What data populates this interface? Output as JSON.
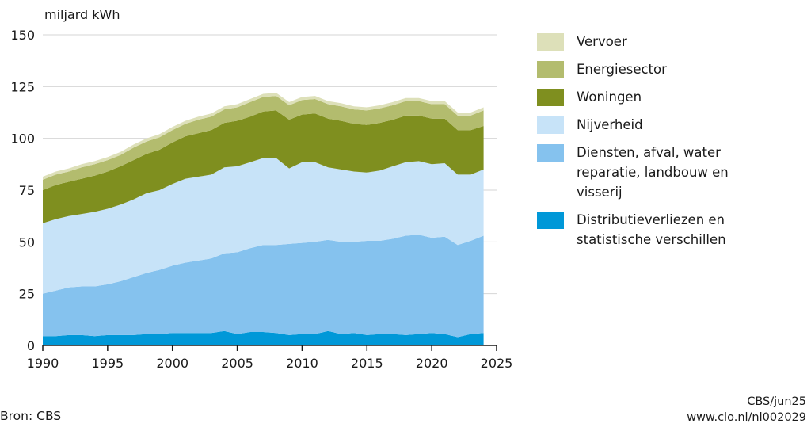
{
  "chart_data": {
    "type": "area",
    "stacked": true,
    "ylabel": "miljard kWh",
    "xlim": [
      1990,
      2025
    ],
    "ylim": [
      0,
      150
    ],
    "x_ticks": [
      "1990",
      "1995",
      "2000",
      "2005",
      "2010",
      "2015",
      "2020",
      "2025"
    ],
    "y_ticks": [
      "0",
      "25",
      "50",
      "75",
      "100",
      "125",
      "150"
    ],
    "grid": "horizontal",
    "legend_position": "right",
    "x": [
      1990,
      1991,
      1992,
      1993,
      1994,
      1995,
      1996,
      1997,
      1998,
      1999,
      2000,
      2001,
      2002,
      2003,
      2004,
      2005,
      2006,
      2007,
      2008,
      2009,
      2010,
      2011,
      2012,
      2013,
      2014,
      2015,
      2016,
      2017,
      2018,
      2019,
      2020,
      2021,
      2022,
      2023,
      2024
    ],
    "series": [
      {
        "name": "Distributieverliezen en\nstatistische verschillen",
        "color": "#0098d8",
        "values": [
          4.5,
          4.5,
          5,
          5,
          4.5,
          5,
          5,
          5,
          5.5,
          5.5,
          6,
          6,
          6,
          6,
          7,
          5.5,
          6.5,
          6.5,
          6,
          5,
          5.5,
          5.5,
          7,
          5.5,
          6,
          5,
          5.5,
          5.5,
          5,
          5.5,
          6,
          5.5,
          4,
          5.5,
          6
        ]
      },
      {
        "name": "Diensten, afval, water\nreparatie, landbouw en\nvisserij",
        "color": "#85c2ee",
        "values": [
          20.5,
          22,
          23,
          23.5,
          24,
          24.5,
          26,
          28,
          29.5,
          31,
          32.5,
          34,
          35,
          36,
          37.5,
          39.5,
          40.5,
          42,
          42.5,
          44,
          44,
          44.5,
          44,
          44.5,
          44,
          45.5,
          45,
          46,
          48,
          48,
          46,
          47,
          44.5,
          45,
          47
        ]
      },
      {
        "name": "Nijverheid",
        "color": "#c7e3f8",
        "values": [
          34,
          34.5,
          34.5,
          35,
          36,
          36.5,
          37,
          37.5,
          38.5,
          38.5,
          39.5,
          40.5,
          40.5,
          40.5,
          41.5,
          41.5,
          41.5,
          42,
          42,
          36.5,
          39,
          38.5,
          35,
          35,
          34,
          33,
          34,
          35,
          35.5,
          35.5,
          35.5,
          35.5,
          34,
          32,
          32
        ]
      },
      {
        "name": "Woningen",
        "color": "#7f8f1f",
        "values": [
          16,
          16.5,
          16.5,
          17,
          17.5,
          18,
          18.5,
          19,
          19,
          19.5,
          20,
          20.5,
          21,
          21.5,
          21.5,
          22,
          22,
          22.5,
          23,
          23.5,
          23,
          23.5,
          23.5,
          23.5,
          23,
          23,
          23,
          22.5,
          22.5,
          22,
          22,
          21.5,
          21.5,
          21.5,
          21
        ]
      },
      {
        "name": "Energiesector",
        "color": "#b3bc6e",
        "values": [
          5,
          5,
          5,
          5.5,
          5.5,
          5.5,
          5.5,
          6,
          6,
          6,
          6,
          6,
          6.5,
          6.5,
          6.5,
          6.5,
          7,
          7,
          7,
          7,
          7,
          7,
          7,
          7,
          7,
          7,
          7,
          7,
          7,
          7,
          7,
          7,
          7,
          7,
          7.5
        ]
      },
      {
        "name": "Vervoer",
        "color": "#dde0b9",
        "values": [
          1.5,
          1.5,
          1.5,
          1.5,
          1.5,
          1.5,
          1.5,
          1.5,
          1.5,
          1.5,
          1.5,
          1.5,
          1.5,
          1.5,
          1.5,
          1.5,
          1.5,
          1.5,
          1.5,
          1.5,
          1.5,
          1.5,
          1.5,
          1.5,
          1.5,
          1.5,
          1.5,
          1.5,
          1.5,
          1.5,
          1.5,
          1.5,
          1.5,
          1.5,
          1.5
        ]
      }
    ],
    "legend_order": [
      "Vervoer",
      "Energiesector",
      "Woningen",
      "Nijverheid",
      "Diensten, afval, water\nreparatie, landbouw en\nvisserij",
      "Distributieverliezen en\nstatistische verschillen"
    ]
  },
  "footer": {
    "source": "Bron: CBS",
    "credit_line1": "CBS/jun25",
    "credit_line2": "www.clo.nl/nl002029"
  }
}
